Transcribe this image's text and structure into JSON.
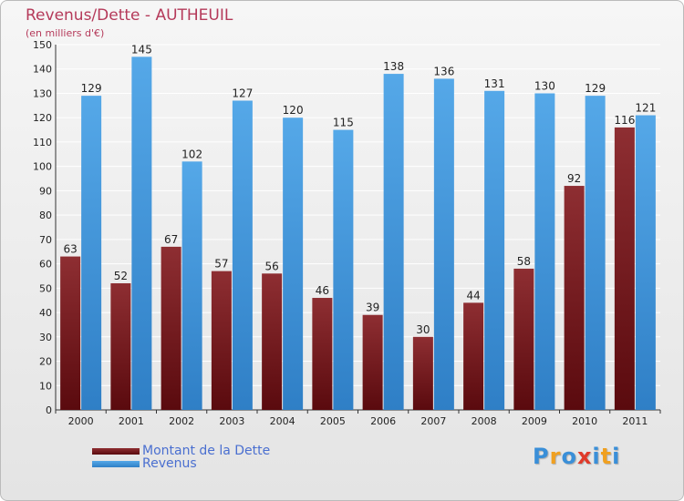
{
  "chart_data": {
    "type": "bar",
    "title": "Revenus/Dette - AUTHEUIL",
    "subtitle": "(en milliers d'€)",
    "categories": [
      "2000",
      "2001",
      "2002",
      "2003",
      "2004",
      "2005",
      "2006",
      "2007",
      "2008",
      "2009",
      "2010",
      "2011"
    ],
    "series": [
      {
        "name": "Montant de la Dette",
        "values": [
          63,
          52,
          67,
          57,
          56,
          46,
          39,
          30,
          44,
          58,
          92,
          116
        ],
        "color": "#8a2a2e"
      },
      {
        "name": "Revenus",
        "values": [
          129,
          145,
          102,
          127,
          120,
          115,
          138,
          136,
          131,
          130,
          129,
          121
        ],
        "color": "#4fa0e0"
      }
    ],
    "ylim": [
      0,
      150
    ],
    "ytick_step": 10,
    "grid": true,
    "legend_position": "bottom-left"
  },
  "logo": {
    "letters": [
      "P",
      "r",
      "o",
      "x",
      "i",
      "t",
      "i"
    ],
    "colors": [
      "#3a8fd8",
      "#f0a020",
      "#3a8fd8",
      "#e03a2a",
      "#3a8fd8",
      "#f0a020",
      "#3a8fd8"
    ]
  }
}
